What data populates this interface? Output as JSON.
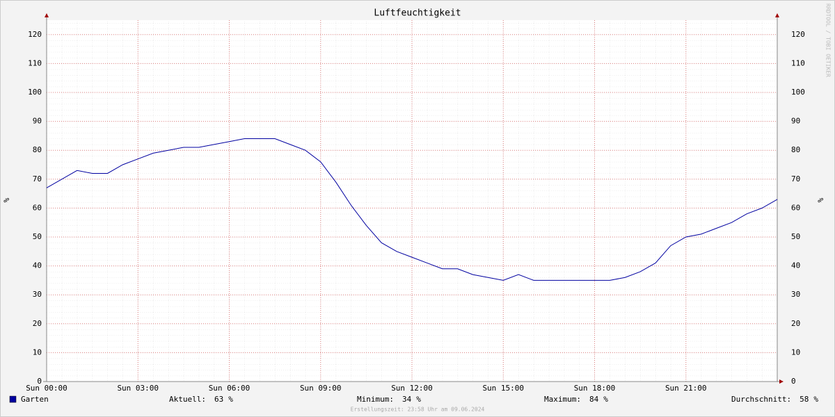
{
  "chart_data": {
    "type": "line",
    "title": "Luftfeuchtigkeit",
    "y_label": "%",
    "y2_label": "%",
    "watermark": "RRDTOOL / TOBI OETIKER",
    "footer": "Erstellungszeit: 23:58 Uhr am 09.06.2024",
    "xlim": [
      0,
      24
    ],
    "ylim": [
      0,
      125
    ],
    "grid": true,
    "xticks": [
      {
        "value": 0,
        "label": "Sun 00:00"
      },
      {
        "value": 3,
        "label": "Sun 03:00"
      },
      {
        "value": 6,
        "label": "Sun 06:00"
      },
      {
        "value": 9,
        "label": "Sun 09:00"
      },
      {
        "value": 12,
        "label": "Sun 12:00"
      },
      {
        "value": 15,
        "label": "Sun 15:00"
      },
      {
        "value": 18,
        "label": "Sun 18:00"
      },
      {
        "value": 21,
        "label": "Sun 21:00"
      }
    ],
    "yticks": [
      0,
      10,
      20,
      30,
      40,
      50,
      60,
      70,
      80,
      90,
      100,
      110,
      120
    ],
    "x": [
      0,
      0.5,
      1,
      1.5,
      2,
      2.5,
      3,
      3.5,
      4,
      4.5,
      5,
      5.5,
      6,
      6.5,
      7,
      7.5,
      8,
      8.5,
      9,
      9.5,
      10,
      10.5,
      11,
      11.5,
      12,
      12.5,
      13,
      13.5,
      14,
      14.5,
      15,
      15.5,
      16,
      16.5,
      17,
      17.5,
      18,
      18.5,
      19,
      19.5,
      20,
      20.5,
      21,
      21.5,
      22,
      22.5,
      23,
      23.5,
      24
    ],
    "series": [
      {
        "name": "Garten",
        "color": "#0000a0",
        "values": [
          67,
          70,
          73,
          72,
          72,
          75,
          77,
          79,
          80,
          81,
          81,
          82,
          83,
          84,
          84,
          84,
          82,
          80,
          76,
          69,
          61,
          54,
          48,
          45,
          43,
          41,
          39,
          39,
          37,
          36,
          35,
          37,
          35,
          35,
          35,
          35,
          35,
          35,
          36,
          38,
          41,
          47,
          50,
          51,
          53,
          55,
          58,
          60,
          63
        ]
      }
    ],
    "stats": [
      {
        "label": "Aktuell:",
        "value": 63,
        "unit": "%"
      },
      {
        "label": "Minimum:",
        "value": 34,
        "unit": "%"
      },
      {
        "label": "Maximum:",
        "value": 84,
        "unit": "%"
      },
      {
        "label": "Durchschnitt:",
        "value": 58,
        "unit": "%"
      }
    ]
  }
}
